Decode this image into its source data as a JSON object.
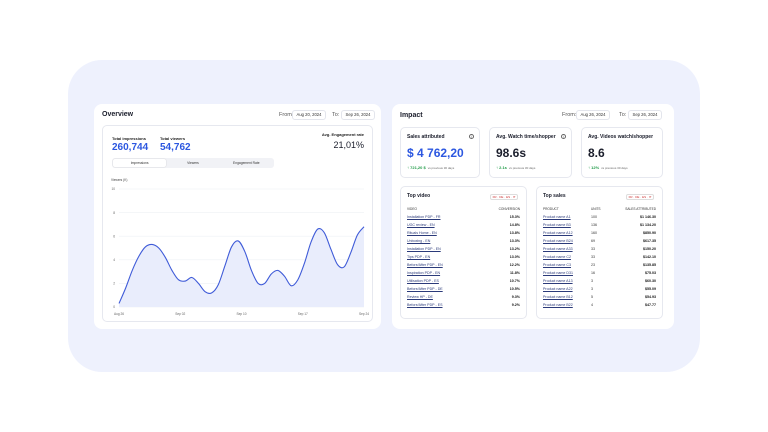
{
  "overview": {
    "title": "Overview",
    "from_label": "From:",
    "from_date": "Aug 20, 2024",
    "to_label": "To:",
    "to_date": "Sep 26, 2024",
    "total_impressions_label": "Total impressions",
    "total_impressions": "260,744",
    "total_viewers_label": "Total viewers",
    "total_viewers": "54,762",
    "engagement_label": "Avg. Engagement rate",
    "engagement": "21,01%",
    "tabs": [
      "Impressions",
      "Viewers",
      "Engagement Rate"
    ],
    "active_tab": 0,
    "chart_data": {
      "type": "line",
      "title": "",
      "ylabel": "Viewers (K)",
      "ylim": [
        0,
        10
      ],
      "y_ticks": [
        "0",
        "2",
        "4",
        "6",
        "8",
        "10"
      ],
      "x_ticks": [
        "Aug 26",
        "Sep 02",
        "Sep 10",
        "Sep 17",
        "Sep 24"
      ],
      "grid": true,
      "colors": {
        "line": "#3f5bd8",
        "area": "#e9edfc"
      },
      "x": [
        0,
        1,
        2,
        3,
        4,
        5,
        6,
        7,
        8,
        9,
        10,
        11,
        12,
        13,
        14,
        15,
        16,
        17,
        18,
        19,
        20,
        21,
        22,
        23,
        24,
        25,
        26,
        27,
        28,
        29,
        30,
        31,
        32,
        33,
        34,
        35,
        36,
        37
      ],
      "y": [
        0.3,
        1.6,
        3.1,
        4.3,
        5.1,
        5.3,
        5.0,
        4.2,
        3.1,
        2.3,
        2.2,
        2.5,
        2.0,
        1.3,
        1.2,
        1.9,
        3.5,
        5.1,
        5.6,
        4.7,
        3.1,
        2.0,
        2.0,
        2.8,
        3.1,
        2.6,
        1.8,
        2.3,
        3.7,
        5.5,
        6.6,
        6.3,
        4.9,
        3.6,
        3.4,
        4.6,
        6.1,
        6.8
      ]
    }
  },
  "impact": {
    "title": "Impact",
    "from_label": "From:",
    "from_date": "Aug 26, 2024",
    "to_label": "To:",
    "to_date": "Sep 26, 2024",
    "kpis": [
      {
        "title": "Sales attributed",
        "value": "$ 4 762,20",
        "delta": "721,20 $",
        "delta_sub": "vs previous 30 days",
        "accent": "#2c57e0"
      },
      {
        "title": "Avg. Watch time/shopper",
        "value": "98.6s",
        "delta": "2.1s",
        "delta_sub": "vs previous 30 days",
        "accent": "#1a1d2b"
      },
      {
        "title": "Avg. Videos watch/shopper",
        "value": "8.6",
        "delta": "12%",
        "delta_sub": "vs previous 30 days",
        "accent": "#1a1d2b"
      }
    ],
    "top_video": {
      "title": "Top video",
      "flags": "FR · DE · ES · IT",
      "col_video": "VIDEO",
      "col_conversion": "CONVERSION",
      "rows": [
        {
          "name": "Installation PDP - FR",
          "value": "15.3%"
        },
        {
          "name": "UGC review - EN",
          "value": "14.8%"
        },
        {
          "name": "Rituals Home - EN",
          "value": "13.8%"
        },
        {
          "name": "Unboxing - EN",
          "value": "13.3%"
        },
        {
          "name": "Installation PDP - EN",
          "value": "13.2%"
        },
        {
          "name": "Tips PDP - EN",
          "value": "13.0%"
        },
        {
          "name": "Before/After PDP - EN",
          "value": "12.2%"
        },
        {
          "name": "Inspiration PDP - EN",
          "value": "11.8%"
        },
        {
          "name": "Utilisation PDP - ES",
          "value": "10.7%"
        },
        {
          "name": "Before/After PDP - DE",
          "value": "10.5%"
        },
        {
          "name": "Review HP - DE",
          "value": "9.3%"
        },
        {
          "name": "Before/After PDP - ES",
          "value": "9.2%"
        }
      ]
    },
    "top_sales": {
      "title": "Top sales",
      "flags": "FR · DE · ES · IT",
      "col_product": "PRODUCT",
      "col_units": "UNITS",
      "col_sales": "SALES ATTRIBUTED",
      "rows": [
        {
          "name": "Product name A1",
          "units": "100",
          "sales": "$1 146.30"
        },
        {
          "name": "Product name B3",
          "units": "136",
          "sales": "$1 134.20"
        },
        {
          "name": "Product name A12",
          "units": "160",
          "sales": "$850.90"
        },
        {
          "name": "Product name B24",
          "units": "69",
          "sales": "$617.35"
        },
        {
          "name": "Product name A33",
          "units": "33",
          "sales": "$150.20"
        },
        {
          "name": "Product name C2",
          "units": "33",
          "sales": "$142.10"
        },
        {
          "name": "Product name C3",
          "units": "23",
          "sales": "$135.85"
        },
        {
          "name": "Product name D31",
          "units": "16",
          "sales": "$75.03"
        },
        {
          "name": "Product name A13",
          "units": "3",
          "sales": "$60.30"
        },
        {
          "name": "Product name A22",
          "units": "3",
          "sales": "$55.09"
        },
        {
          "name": "Product name B12",
          "units": "5",
          "sales": "$54.93"
        },
        {
          "name": "Product name B22",
          "units": "4",
          "sales": "$47.77"
        }
      ]
    }
  }
}
